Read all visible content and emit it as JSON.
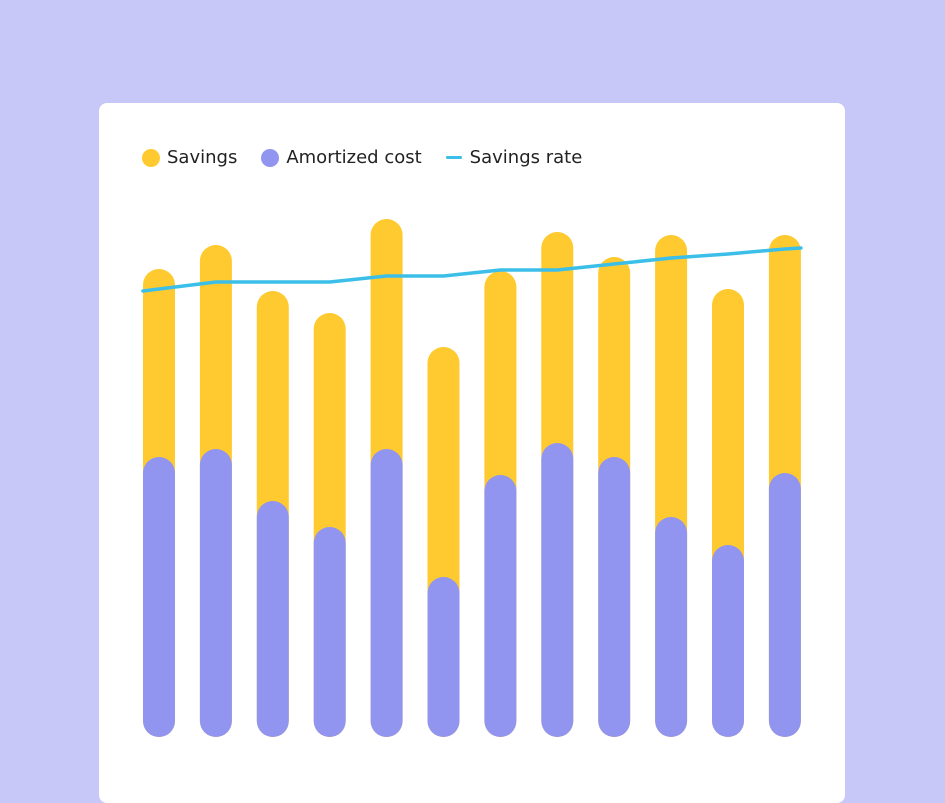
{
  "chart_data": {
    "type": "bar",
    "stacked": true,
    "categories": [
      "",
      "",
      "",
      "",
      "",
      "",
      "",
      "",
      "",
      "",
      "",
      ""
    ],
    "series": [
      {
        "name": "Amortized cost",
        "kind": "bar",
        "color": "#9195f0",
        "values": [
          280,
          288,
          236,
          210,
          288,
          160,
          262,
          294,
          280,
          220,
          192,
          264
        ]
      },
      {
        "name": "Savings",
        "kind": "bar",
        "color": "#ffca2f",
        "values": [
          188,
          204,
          210,
          214,
          230,
          230,
          204,
          211,
          200,
          282,
          256,
          238
        ]
      },
      {
        "name": "Savings rate",
        "kind": "line",
        "color": "#3bbfe8",
        "values": [
          448,
          455,
          455,
          455,
          461,
          461,
          467,
          467,
          473,
          479,
          483,
          488
        ]
      }
    ],
    "ylim": [
      0,
      520
    ],
    "grid": false,
    "legend_position": "top-left"
  }
}
